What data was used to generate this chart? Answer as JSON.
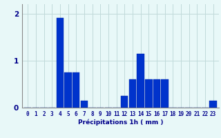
{
  "hours": [
    0,
    1,
    2,
    3,
    4,
    5,
    6,
    7,
    8,
    9,
    10,
    11,
    12,
    13,
    14,
    15,
    16,
    17,
    18,
    19,
    20,
    21,
    22,
    23
  ],
  "values": [
    0,
    0,
    0,
    0,
    1.9,
    0.75,
    0.75,
    0.15,
    0,
    0,
    0,
    0,
    0.25,
    0.6,
    1.15,
    0.6,
    0.6,
    0.6,
    0,
    0,
    0,
    0,
    0,
    0.15
  ],
  "bar_color": "#0033cc",
  "bar_edge_color": "#0022aa",
  "background_color": "#e8f8f8",
  "grid_color": "#c0dada",
  "xlabel": "Précipitations 1h ( mm )",
  "ylim": [
    0,
    2.2
  ],
  "yticks": [
    0,
    1,
    2
  ],
  "tick_color": "#00008b",
  "xlabel_color": "#00008b",
  "tick_fontsize": 5.5,
  "ylabel_fontsize": 6.5
}
